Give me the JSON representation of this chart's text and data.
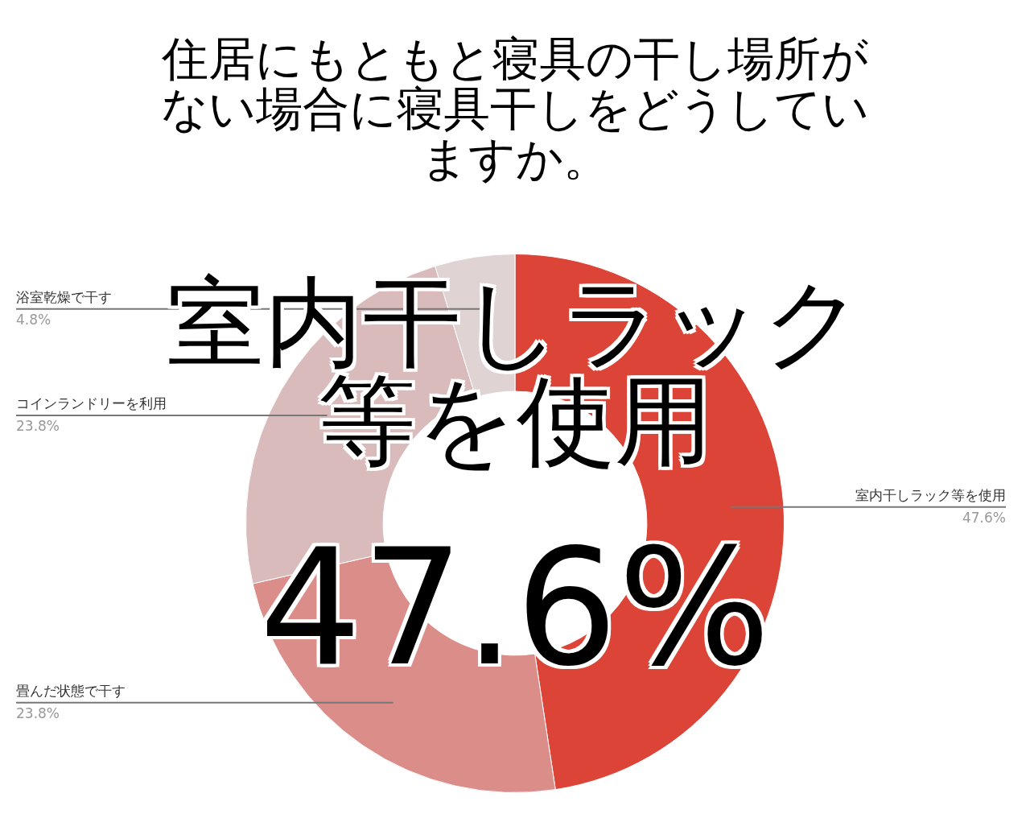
{
  "chart_data": {
    "type": "donut",
    "title": "住居にもともと寝具の干し場所がない場合に寝具干しをどうしていますか。",
    "categories": [
      "室内干しラック等を使用",
      "畳んだ状態で干す",
      "コインランドリーを利用",
      "浴室乾燥で干す"
    ],
    "values": [
      47.6,
      23.8,
      23.8,
      4.8
    ],
    "value_labels": [
      "47.6%",
      "23.8%",
      "23.8%",
      "4.8%"
    ],
    "colors": [
      "#db4437",
      "#db8e89",
      "#d9bbbb",
      "#dfd4d3"
    ],
    "annotations": [
      "室内干しラック等を使用",
      "47.6%"
    ],
    "legend": false
  }
}
